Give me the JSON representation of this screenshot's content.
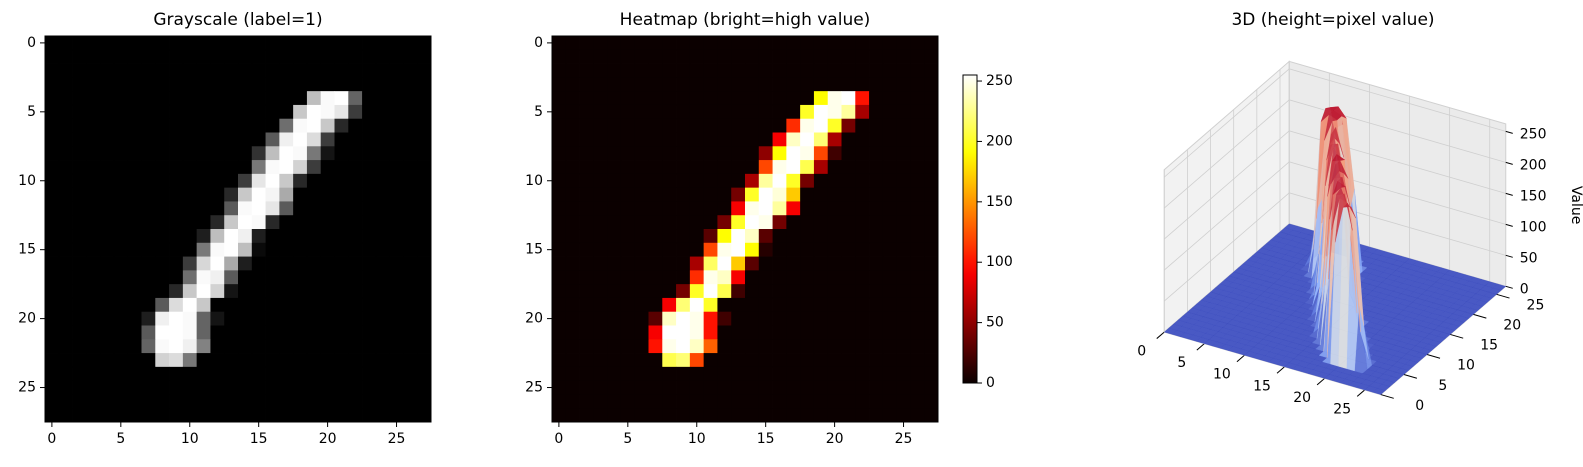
{
  "chart_data": {
    "type": "image-panels",
    "values": [
      [
        0,
        0,
        0,
        0,
        0,
        0,
        0,
        0,
        0,
        0,
        0,
        0,
        0,
        0,
        0,
        0,
        0,
        0,
        0,
        0,
        0,
        0,
        0,
        0,
        0,
        0,
        0,
        0
      ],
      [
        0,
        0,
        0,
        0,
        0,
        0,
        0,
        0,
        0,
        0,
        0,
        0,
        0,
        0,
        0,
        0,
        0,
        0,
        0,
        0,
        0,
        0,
        0,
        0,
        0,
        0,
        0,
        0
      ],
      [
        0,
        0,
        0,
        0,
        0,
        0,
        0,
        0,
        0,
        0,
        0,
        0,
        0,
        0,
        0,
        0,
        0,
        0,
        0,
        0,
        0,
        0,
        0,
        0,
        0,
        0,
        0,
        0
      ],
      [
        0,
        0,
        0,
        0,
        0,
        0,
        0,
        0,
        0,
        0,
        0,
        0,
        0,
        0,
        0,
        0,
        0,
        0,
        0,
        0,
        0,
        0,
        0,
        0,
        0,
        0,
        0,
        0
      ],
      [
        0,
        0,
        0,
        0,
        0,
        0,
        0,
        0,
        0,
        0,
        0,
        0,
        0,
        0,
        0,
        0,
        0,
        0,
        0,
        190,
        250,
        255,
        100,
        0,
        0,
        0,
        0,
        0
      ],
      [
        0,
        0,
        0,
        0,
        0,
        0,
        0,
        0,
        0,
        0,
        0,
        0,
        0,
        0,
        0,
        0,
        0,
        0,
        200,
        255,
        250,
        230,
        60,
        0,
        0,
        0,
        0,
        0
      ],
      [
        0,
        0,
        0,
        0,
        0,
        0,
        0,
        0,
        0,
        0,
        0,
        0,
        0,
        0,
        0,
        0,
        0,
        110,
        250,
        255,
        200,
        40,
        0,
        0,
        0,
        0,
        0,
        0
      ],
      [
        0,
        0,
        0,
        0,
        0,
        0,
        0,
        0,
        0,
        0,
        0,
        0,
        0,
        0,
        0,
        0,
        90,
        240,
        255,
        220,
        60,
        0,
        0,
        0,
        0,
        0,
        0,
        0
      ],
      [
        0,
        0,
        0,
        0,
        0,
        0,
        0,
        0,
        0,
        0,
        0,
        0,
        0,
        0,
        0,
        50,
        190,
        255,
        250,
        120,
        20,
        0,
        0,
        0,
        0,
        0,
        0,
        0
      ],
      [
        0,
        0,
        0,
        0,
        0,
        0,
        0,
        0,
        0,
        0,
        0,
        0,
        0,
        0,
        0,
        120,
        250,
        255,
        210,
        60,
        0,
        0,
        0,
        0,
        0,
        0,
        0,
        0
      ],
      [
        0,
        0,
        0,
        0,
        0,
        0,
        0,
        0,
        0,
        0,
        0,
        0,
        0,
        0,
        60,
        230,
        255,
        200,
        40,
        0,
        0,
        0,
        0,
        0,
        0,
        0,
        0,
        0
      ],
      [
        0,
        0,
        0,
        0,
        0,
        0,
        0,
        0,
        0,
        0,
        0,
        0,
        0,
        40,
        200,
        255,
        245,
        170,
        0,
        0,
        0,
        0,
        0,
        0,
        0,
        0,
        0,
        0
      ],
      [
        0,
        0,
        0,
        0,
        0,
        0,
        0,
        0,
        0,
        0,
        0,
        0,
        0,
        90,
        250,
        255,
        230,
        90,
        0,
        0,
        0,
        0,
        0,
        0,
        0,
        0,
        0,
        0
      ],
      [
        0,
        0,
        0,
        0,
        0,
        0,
        0,
        0,
        0,
        0,
        0,
        0,
        40,
        200,
        255,
        250,
        40,
        0,
        0,
        0,
        0,
        0,
        0,
        0,
        0,
        0,
        0,
        0
      ],
      [
        0,
        0,
        0,
        0,
        0,
        0,
        0,
        0,
        0,
        0,
        0,
        30,
        190,
        255,
        240,
        30,
        0,
        0,
        0,
        0,
        0,
        0,
        0,
        0,
        0,
        0,
        0,
        0
      ],
      [
        0,
        0,
        0,
        0,
        0,
        0,
        0,
        0,
        0,
        0,
        0,
        120,
        250,
        255,
        190,
        10,
        0,
        0,
        0,
        0,
        0,
        0,
        0,
        0,
        0,
        0,
        0,
        0
      ],
      [
        0,
        0,
        0,
        0,
        0,
        0,
        0,
        0,
        0,
        0,
        60,
        215,
        255,
        170,
        30,
        0,
        0,
        0,
        0,
        0,
        0,
        0,
        0,
        0,
        0,
        0,
        0,
        0
      ],
      [
        0,
        0,
        0,
        0,
        0,
        0,
        0,
        0,
        0,
        0,
        110,
        250,
        240,
        90,
        0,
        0,
        0,
        0,
        0,
        0,
        0,
        0,
        0,
        0,
        0,
        0,
        0,
        0
      ],
      [
        0,
        0,
        0,
        0,
        0,
        0,
        0,
        0,
        0,
        40,
        200,
        255,
        210,
        20,
        0,
        0,
        0,
        0,
        0,
        0,
        0,
        0,
        0,
        0,
        0,
        0,
        0,
        0
      ],
      [
        0,
        0,
        0,
        0,
        0,
        0,
        0,
        0,
        90,
        220,
        255,
        200,
        0,
        0,
        0,
        0,
        0,
        0,
        0,
        0,
        0,
        0,
        0,
        0,
        0,
        0,
        0,
        0
      ],
      [
        0,
        0,
        0,
        0,
        0,
        0,
        0,
        30,
        240,
        255,
        250,
        100,
        20,
        0,
        0,
        0,
        0,
        0,
        0,
        0,
        0,
        0,
        0,
        0,
        0,
        0,
        0,
        0
      ],
      [
        0,
        0,
        0,
        0,
        0,
        0,
        0,
        90,
        255,
        255,
        250,
        100,
        0,
        0,
        0,
        0,
        0,
        0,
        0,
        0,
        0,
        0,
        0,
        0,
        0,
        0,
        0,
        0
      ],
      [
        0,
        0,
        0,
        0,
        0,
        0,
        0,
        100,
        250,
        255,
        240,
        130,
        0,
        0,
        0,
        0,
        0,
        0,
        0,
        0,
        0,
        0,
        0,
        0,
        0,
        0,
        0,
        0
      ],
      [
        0,
        0,
        0,
        0,
        0,
        0,
        0,
        0,
        210,
        220,
        120,
        0,
        0,
        0,
        0,
        0,
        0,
        0,
        0,
        0,
        0,
        0,
        0,
        0,
        0,
        0,
        0,
        0
      ],
      [
        0,
        0,
        0,
        0,
        0,
        0,
        0,
        0,
        0,
        0,
        0,
        0,
        0,
        0,
        0,
        0,
        0,
        0,
        0,
        0,
        0,
        0,
        0,
        0,
        0,
        0,
        0,
        0
      ],
      [
        0,
        0,
        0,
        0,
        0,
        0,
        0,
        0,
        0,
        0,
        0,
        0,
        0,
        0,
        0,
        0,
        0,
        0,
        0,
        0,
        0,
        0,
        0,
        0,
        0,
        0,
        0,
        0
      ],
      [
        0,
        0,
        0,
        0,
        0,
        0,
        0,
        0,
        0,
        0,
        0,
        0,
        0,
        0,
        0,
        0,
        0,
        0,
        0,
        0,
        0,
        0,
        0,
        0,
        0,
        0,
        0,
        0
      ],
      [
        0,
        0,
        0,
        0,
        0,
        0,
        0,
        0,
        0,
        0,
        0,
        0,
        0,
        0,
        0,
        0,
        0,
        0,
        0,
        0,
        0,
        0,
        0,
        0,
        0,
        0,
        0,
        0
      ]
    ],
    "panels": [
      {
        "type": "image",
        "title": "Grayscale (label=1)",
        "cmap": "gray",
        "clim": [
          0,
          255
        ],
        "xlim": [
          -0.5,
          27.5
        ],
        "ylim": [
          27.5,
          -0.5
        ],
        "xticks": [
          0,
          5,
          10,
          15,
          20,
          25
        ],
        "yticks": [
          0,
          5,
          10,
          15,
          20,
          25
        ]
      },
      {
        "type": "image",
        "title": "Heatmap (bright=high value)",
        "cmap": "hot",
        "clim": [
          0,
          255
        ],
        "xlim": [
          -0.5,
          27.5
        ],
        "ylim": [
          27.5,
          -0.5
        ],
        "xticks": [
          0,
          5,
          10,
          15,
          20,
          25
        ],
        "yticks": [
          0,
          5,
          10,
          15,
          20,
          25
        ],
        "colorbar": {
          "ticks": [
            0,
            50,
            100,
            150,
            200,
            250
          ]
        }
      },
      {
        "type": "surface",
        "title": "3D (height=pixel value)",
        "cmap": "coolwarm",
        "zlabel": "Value",
        "xlim": [
          0,
          27
        ],
        "ylim": [
          0,
          27
        ],
        "zlim": [
          0,
          262
        ],
        "xticks": [
          0,
          5,
          10,
          15,
          20,
          25
        ],
        "yticks": [
          0,
          5,
          10,
          15,
          20,
          25
        ],
        "zticks": [
          0,
          50,
          100,
          150,
          200,
          250
        ]
      }
    ]
  }
}
